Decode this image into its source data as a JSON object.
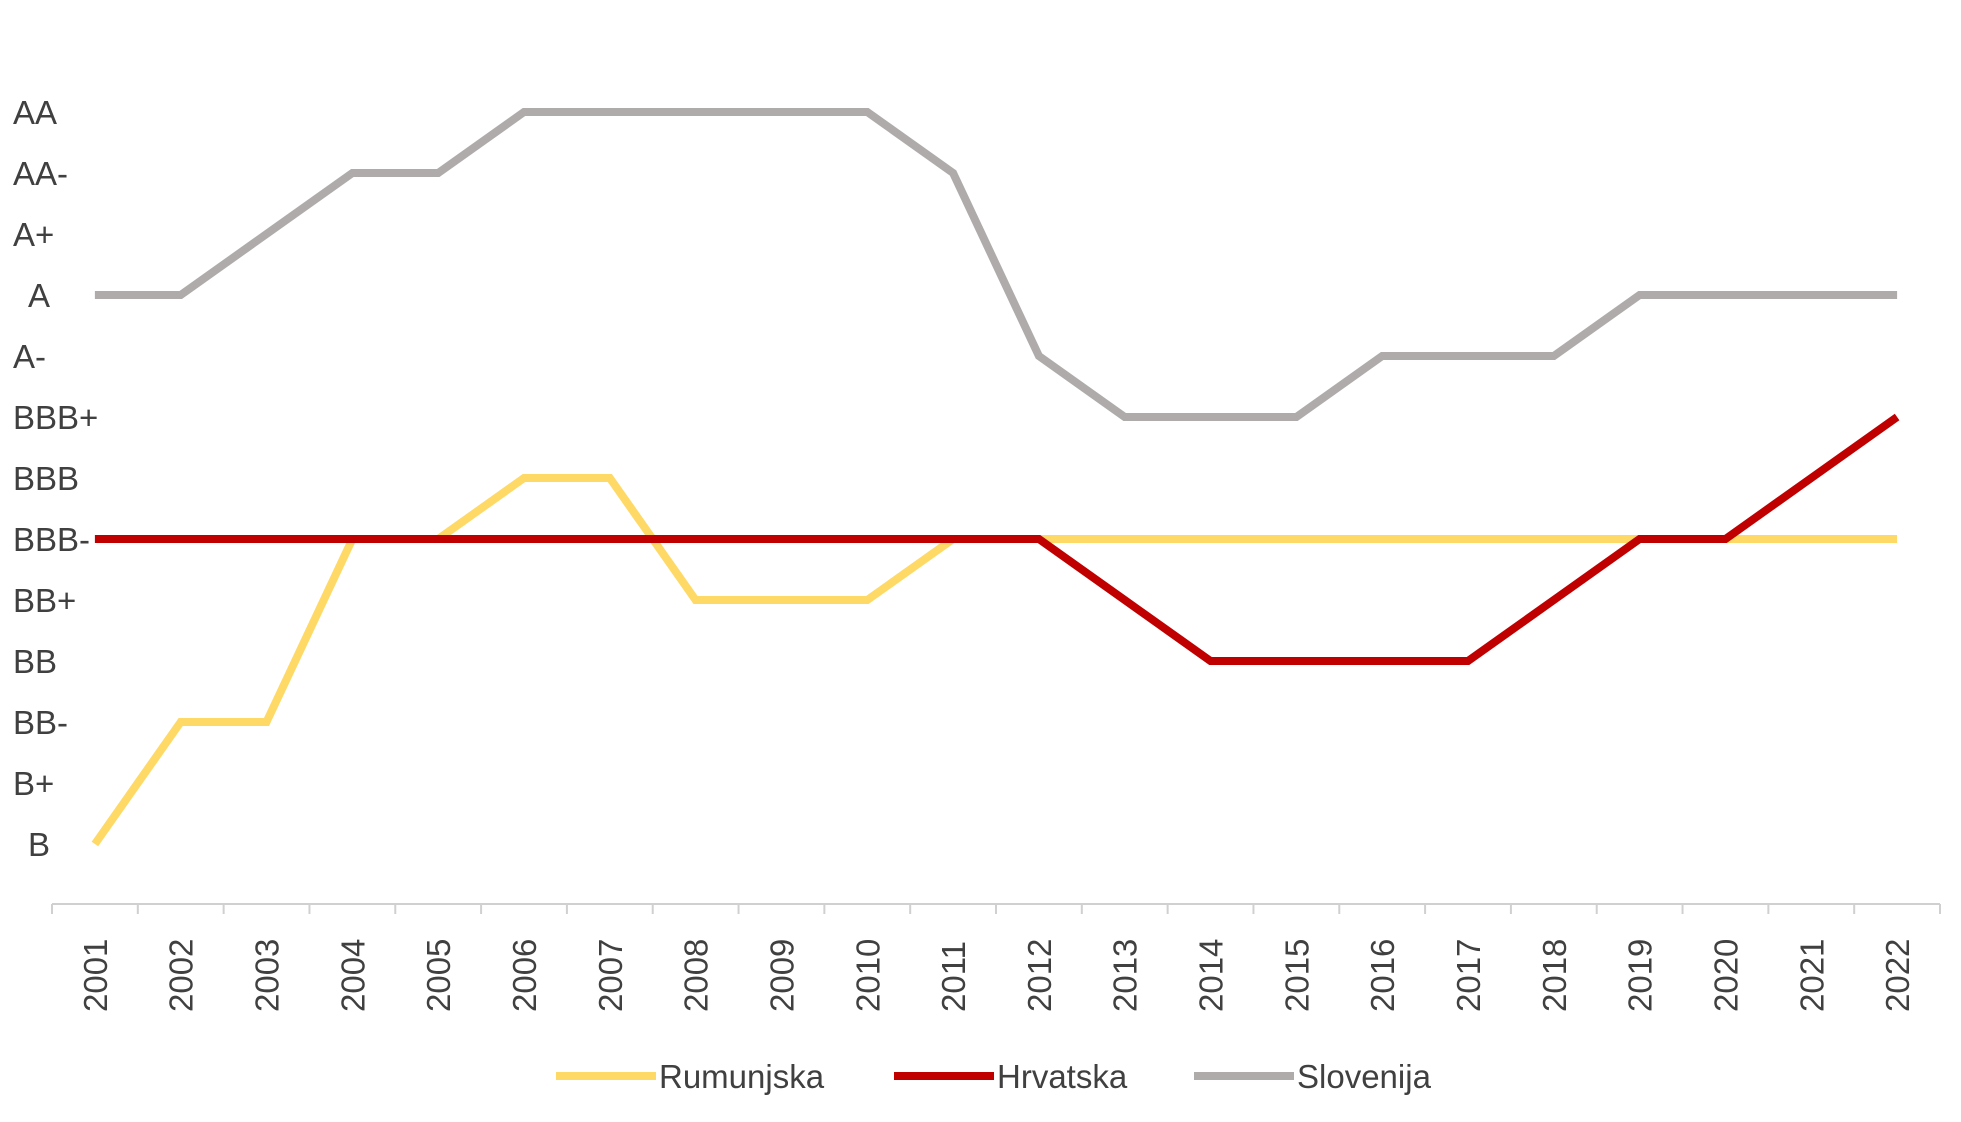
{
  "chart_data": {
    "type": "line",
    "title": "",
    "xlabel": "",
    "ylabel": "",
    "y_categories": [
      "B",
      "B+",
      "BB-",
      "BB",
      "BB+",
      "BBB-",
      "BBB",
      "BBB+",
      "A-",
      "A",
      "A+",
      "AA-",
      "AA"
    ],
    "x": [
      "2001",
      "2002",
      "2003",
      "2004",
      "2005",
      "2006",
      "2007",
      "2008",
      "2009",
      "2010",
      "2011",
      "2012",
      "2013",
      "2014",
      "2015",
      "2016",
      "2017",
      "2018",
      "2019",
      "2020",
      "2021",
      "2022"
    ],
    "series": [
      {
        "name": "Rumunjska",
        "color": "#ffd966",
        "values": [
          "B",
          "BB-",
          "BB-",
          "BBB-",
          "BBB-",
          "BBB",
          "BBB",
          "BB+",
          "BB+",
          "BB+",
          "BBB-",
          "BBB-",
          "BBB-",
          "BBB-",
          "BBB-",
          "BBB-",
          "BBB-",
          "BBB-",
          "BBB-",
          "BBB-",
          "BBB-",
          "BBB-"
        ]
      },
      {
        "name": "Hrvatska",
        "color": "#c00000",
        "values": [
          "BBB-",
          "BBB-",
          "BBB-",
          "BBB-",
          "BBB-",
          "BBB-",
          "BBB-",
          "BBB-",
          "BBB-",
          "BBB-",
          "BBB-",
          "BBB-",
          "BB+",
          "BB",
          "BB",
          "BB",
          "BB",
          "BB+",
          "BBB-",
          "BBB-",
          "BBB",
          "BBB+"
        ]
      },
      {
        "name": "Slovenija",
        "color": "#afabab",
        "values": [
          "A",
          "A",
          "A+",
          "AA-",
          "AA-",
          "AA",
          "AA",
          "AA",
          "AA",
          "AA",
          "AA-",
          "A-",
          "BBB+",
          "BBB+",
          "BBB+",
          "A-",
          "A-",
          "A-",
          "A",
          "A",
          "A",
          "A"
        ]
      }
    ],
    "legend_position": "bottom",
    "grid": false
  }
}
